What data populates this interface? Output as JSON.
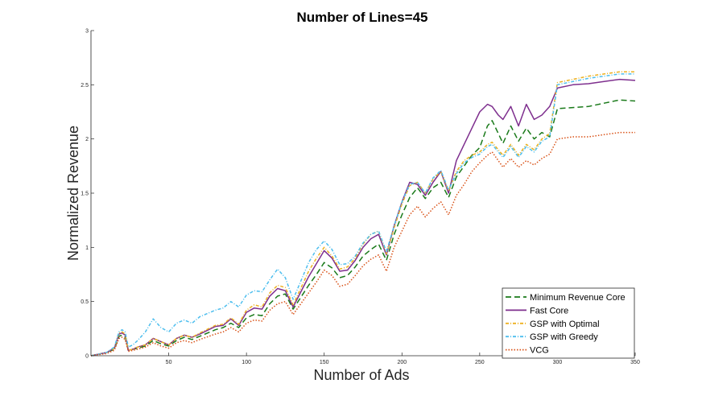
{
  "chart_data": {
    "type": "line",
    "title": "Number of Lines=45",
    "xlabel": "Number of Ads",
    "ylabel": "Normalized Revenue",
    "xlim": [
      0,
      350
    ],
    "ylim": [
      0,
      3
    ],
    "xticks": [
      50,
      100,
      150,
      200,
      250,
      300,
      350
    ],
    "yticks": [
      0,
      0.5,
      1,
      1.5,
      2,
      2.5,
      3
    ],
    "xtick_labels": [
      "50",
      "100",
      "150",
      "200",
      "250",
      "300",
      "350"
    ],
    "ytick_labels": [
      "0",
      "0.5",
      "1",
      "1.5",
      "2",
      "2.5",
      "3"
    ],
    "grid": false,
    "legend_position": "bottom-right",
    "x": [
      0,
      10,
      15,
      18,
      20,
      22,
      24,
      27,
      30,
      35,
      40,
      45,
      50,
      55,
      60,
      65,
      70,
      80,
      85,
      90,
      95,
      100,
      105,
      110,
      115,
      120,
      125,
      130,
      140,
      145,
      150,
      155,
      160,
      165,
      170,
      175,
      180,
      185,
      190,
      195,
      200,
      205,
      210,
      215,
      220,
      225,
      230,
      235,
      240,
      245,
      250,
      255,
      258,
      262,
      265,
      270,
      275,
      280,
      285,
      290,
      295,
      300,
      310,
      320,
      330,
      340,
      350
    ],
    "series": [
      {
        "name": "Minimum Revenue Core",
        "color": "#1a7a1a",
        "dash": "7,4",
        "values": [
          0.0,
          0.03,
          0.06,
          0.18,
          0.19,
          0.17,
          0.05,
          0.06,
          0.07,
          0.09,
          0.14,
          0.11,
          0.09,
          0.14,
          0.17,
          0.15,
          0.18,
          0.24,
          0.26,
          0.3,
          0.26,
          0.35,
          0.38,
          0.37,
          0.48,
          0.55,
          0.57,
          0.43,
          0.65,
          0.75,
          0.86,
          0.81,
          0.72,
          0.74,
          0.82,
          0.92,
          0.98,
          1.03,
          0.88,
          1.12,
          1.3,
          1.46,
          1.55,
          1.45,
          1.55,
          1.6,
          1.46,
          1.65,
          1.75,
          1.85,
          1.92,
          2.12,
          2.17,
          2.05,
          1.96,
          2.12,
          1.98,
          2.1,
          2.0,
          2.06,
          2.02,
          2.28,
          2.29,
          2.3,
          2.33,
          2.36,
          2.35
        ]
      },
      {
        "name": "Fast Core",
        "color": "#7e2f8e",
        "dash": "",
        "values": [
          0.0,
          0.03,
          0.07,
          0.2,
          0.21,
          0.19,
          0.05,
          0.06,
          0.08,
          0.1,
          0.16,
          0.13,
          0.1,
          0.16,
          0.19,
          0.17,
          0.2,
          0.27,
          0.28,
          0.34,
          0.28,
          0.4,
          0.44,
          0.43,
          0.55,
          0.62,
          0.6,
          0.45,
          0.73,
          0.85,
          0.97,
          0.9,
          0.78,
          0.79,
          0.88,
          1.0,
          1.08,
          1.12,
          0.93,
          1.2,
          1.42,
          1.6,
          1.58,
          1.48,
          1.6,
          1.7,
          1.5,
          1.8,
          1.95,
          2.1,
          2.25,
          2.32,
          2.3,
          2.22,
          2.18,
          2.3,
          2.12,
          2.32,
          2.18,
          2.22,
          2.3,
          2.47,
          2.5,
          2.51,
          2.53,
          2.55,
          2.54
        ]
      },
      {
        "name": "GSP with Optimal",
        "color": "#edb120",
        "dash": "4,2,1,2",
        "values": [
          0.0,
          0.03,
          0.07,
          0.21,
          0.22,
          0.2,
          0.05,
          0.06,
          0.08,
          0.1,
          0.16,
          0.13,
          0.1,
          0.16,
          0.19,
          0.17,
          0.21,
          0.28,
          0.29,
          0.35,
          0.29,
          0.42,
          0.47,
          0.45,
          0.58,
          0.65,
          0.63,
          0.47,
          0.78,
          0.9,
          1.0,
          0.92,
          0.8,
          0.82,
          0.9,
          1.03,
          1.12,
          1.15,
          0.94,
          1.18,
          1.4,
          1.57,
          1.6,
          1.5,
          1.63,
          1.7,
          1.52,
          1.7,
          1.8,
          1.85,
          1.88,
          1.95,
          1.97,
          1.9,
          1.85,
          1.95,
          1.85,
          1.95,
          1.9,
          2.0,
          2.05,
          2.52,
          2.55,
          2.58,
          2.6,
          2.62,
          2.62
        ]
      },
      {
        "name": "GSP with Greedy",
        "color": "#4dbeee",
        "dash": "4,2,1,2",
        "values": [
          0.0,
          0.03,
          0.08,
          0.22,
          0.24,
          0.22,
          0.08,
          0.1,
          0.14,
          0.22,
          0.34,
          0.26,
          0.22,
          0.3,
          0.33,
          0.3,
          0.36,
          0.42,
          0.44,
          0.5,
          0.45,
          0.56,
          0.6,
          0.59,
          0.7,
          0.8,
          0.72,
          0.52,
          0.86,
          0.98,
          1.06,
          0.98,
          0.84,
          0.85,
          0.92,
          1.04,
          1.12,
          1.15,
          0.96,
          1.2,
          1.42,
          1.58,
          1.6,
          1.5,
          1.64,
          1.71,
          1.53,
          1.68,
          1.78,
          1.83,
          1.86,
          1.93,
          1.95,
          1.88,
          1.83,
          1.93,
          1.83,
          1.93,
          1.88,
          1.98,
          2.02,
          2.5,
          2.53,
          2.56,
          2.58,
          2.6,
          2.6
        ]
      },
      {
        "name": "VCG",
        "color": "#d95319",
        "dash": "1.5,2",
        "values": [
          0.0,
          0.02,
          0.05,
          0.16,
          0.17,
          0.15,
          0.04,
          0.05,
          0.06,
          0.08,
          0.12,
          0.09,
          0.07,
          0.12,
          0.14,
          0.12,
          0.15,
          0.2,
          0.22,
          0.26,
          0.22,
          0.3,
          0.33,
          0.32,
          0.42,
          0.48,
          0.5,
          0.38,
          0.58,
          0.68,
          0.79,
          0.74,
          0.64,
          0.66,
          0.74,
          0.83,
          0.89,
          0.93,
          0.78,
          1.0,
          1.15,
          1.3,
          1.38,
          1.28,
          1.36,
          1.42,
          1.3,
          1.48,
          1.58,
          1.7,
          1.78,
          1.85,
          1.88,
          1.8,
          1.74,
          1.82,
          1.74,
          1.8,
          1.76,
          1.82,
          1.86,
          2.0,
          2.02,
          2.02,
          2.04,
          2.06,
          2.06
        ]
      }
    ]
  }
}
